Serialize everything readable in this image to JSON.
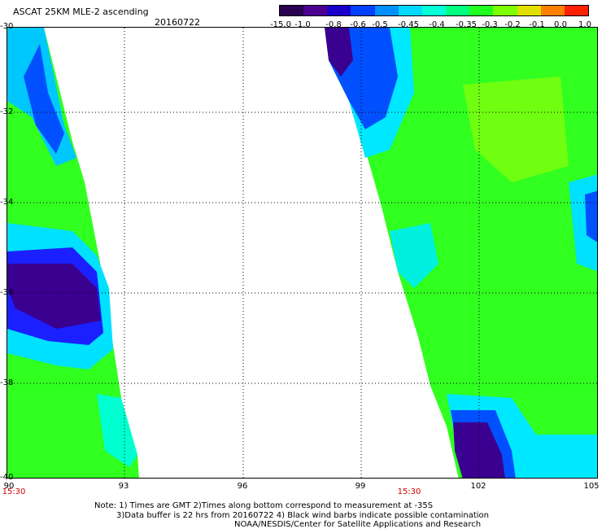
{
  "header": {
    "title": "ASCAT 25KM MLE-2 ascending",
    "date": "20160722"
  },
  "colorbar": {
    "labels": [
      "-15.0",
      "-1.0",
      "-0.8",
      "-0.6",
      "-0.5",
      "-0.45",
      "-0.4",
      "-0.35",
      "-0.3",
      "-0.2",
      "-0.1",
      "0.0",
      "1.0"
    ],
    "colors": [
      "#2a0050",
      "#4b0090",
      "#1800c8",
      "#0040ff",
      "#0090ff",
      "#00d8ff",
      "#00ffd8",
      "#00ff80",
      "#20ff20",
      "#80ff00",
      "#e0e000",
      "#ff8000",
      "#ff2000"
    ]
  },
  "map": {
    "lat_labels": [
      "-30",
      "-32",
      "-34",
      "-36",
      "-38",
      "-40"
    ],
    "lon_labels": [
      "90",
      "93",
      "96",
      "99",
      "102",
      "105"
    ],
    "time_labels": [
      "15:30",
      "15:30"
    ]
  },
  "footer": {
    "note1": "Note: 1) Times are GMT 2)Times along bottom correspond to measurement at -35S",
    "note2": "3)Data buffer is 22 hrs from 20160722 4) Black wind barbs indicate possible contamination",
    "note3": "NOAA/NESDIS/Center for Satellite Applications and Research"
  }
}
